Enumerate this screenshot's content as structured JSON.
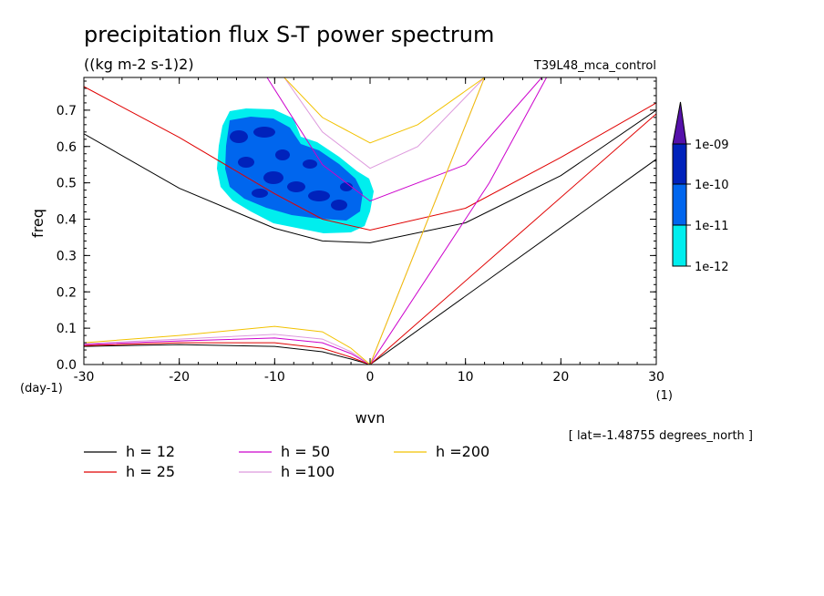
{
  "title": "precipitation flux S-T power spectrum",
  "units": "((kg m-2 s-1)2)",
  "experiment": "T39L48_mca_control",
  "lat_note": "[ lat=-1.48755 degrees_north ]",
  "colors": {
    "h12": "#000000",
    "h25": "#e00000",
    "h50": "#cc00cc",
    "h100": "#dd99dd",
    "h200": "#f2c200",
    "level1": "#00eeee",
    "level2": "#0066ee",
    "level3": "#0022bb",
    "level4": "#5511aa"
  },
  "chart_data": {
    "type": "line",
    "title": "precipitation flux S-T power spectrum",
    "subtitle": "((kg m-2 s-1)2)",
    "xlabel": "wvn",
    "ylabel": "freq",
    "x_unit": "(1)",
    "y_unit": "(day-1)",
    "xlim": [
      -30,
      30
    ],
    "ylim": [
      0,
      0.79
    ],
    "x_ticks": [
      -30,
      -20,
      -10,
      0,
      10,
      20,
      30
    ],
    "x_tick_labels": [
      "-30",
      "-20",
      "-10",
      "0",
      "10",
      "20",
      "30"
    ],
    "y_ticks": [
      0,
      0.1,
      0.2,
      0.3,
      0.4,
      0.5,
      0.6,
      0.7
    ],
    "y_tick_labels": [
      "0.0",
      "0.1",
      "0.2",
      "0.3",
      "0.4",
      "0.5",
      "0.6",
      "0.7"
    ],
    "grid": false,
    "legend_position": "bottom-left",
    "series": [
      {
        "name": "h = 12",
        "key": "h12",
        "kelvin": {
          "x": [
            0,
            30
          ],
          "y": [
            0,
            0.565
          ]
        },
        "ig": {
          "x": [
            -30,
            -20,
            -10,
            -5,
            0,
            10,
            20,
            30
          ],
          "y": [
            0.635,
            0.485,
            0.375,
            0.34,
            0.335,
            0.39,
            0.52,
            0.7
          ]
        },
        "er": {
          "x": [
            -30,
            -20,
            -10,
            -5,
            -2,
            0
          ],
          "y": [
            0.05,
            0.055,
            0.05,
            0.035,
            0.015,
            0
          ]
        }
      },
      {
        "name": "h = 25",
        "key": "h25",
        "kelvin": {
          "x": [
            0,
            30
          ],
          "y": [
            0,
            0.69
          ]
        },
        "ig": {
          "x": [
            -30,
            -20,
            -10,
            -5,
            0,
            10,
            20,
            30
          ],
          "y": [
            0.765,
            0.625,
            0.47,
            0.4,
            0.37,
            0.43,
            0.57,
            0.72
          ]
        },
        "er": {
          "x": [
            -30,
            -20,
            -10,
            -5,
            -2,
            0
          ],
          "y": [
            0.052,
            0.06,
            0.06,
            0.045,
            0.02,
            0
          ]
        }
      },
      {
        "name": "h = 50",
        "key": "h50",
        "kelvin": {
          "x": [
            0,
            12.5,
            18.5
          ],
          "y": [
            0,
            0.5,
            0.79
          ]
        },
        "ig": {
          "x": [
            -10.8,
            -5,
            0,
            10,
            18
          ],
          "y": [
            0.79,
            0.55,
            0.45,
            0.55,
            0.79
          ]
        },
        "er": {
          "x": [
            -30,
            -20,
            -10,
            -5,
            -2,
            0
          ],
          "y": [
            0.055,
            0.065,
            0.073,
            0.06,
            0.03,
            0
          ]
        }
      },
      {
        "name": "h =100",
        "key": "h100",
        "kelvin": {
          "x": [
            0,
            12
          ],
          "y": [
            0,
            0.79
          ]
        },
        "ig": {
          "x": [
            -9,
            -5,
            0,
            5,
            12
          ],
          "y": [
            0.79,
            0.64,
            0.54,
            0.6,
            0.79
          ]
        },
        "er": {
          "x": [
            -30,
            -20,
            -10,
            -5,
            -2,
            0
          ],
          "y": [
            0.057,
            0.07,
            0.083,
            0.07,
            0.035,
            0
          ]
        }
      },
      {
        "name": "h =200",
        "key": "h200",
        "kelvin": {
          "x": [
            0,
            12
          ],
          "y": [
            0,
            0.79
          ]
        },
        "ig": {
          "x": [
            -9,
            -5,
            0,
            5,
            12
          ],
          "y": [
            0.79,
            0.68,
            0.61,
            0.66,
            0.79
          ]
        },
        "er": {
          "x": [
            -30,
            -20,
            -10,
            -5,
            -2,
            0
          ],
          "y": [
            0.06,
            0.08,
            0.105,
            0.09,
            0.045,
            0
          ]
        }
      }
    ],
    "colorbar": {
      "type": "heatmap",
      "levels": [
        "1e-12",
        "1e-11",
        "1e-10",
        "1e-09"
      ],
      "shaded_region": {
        "wvn": [
          -16,
          0
        ],
        "freq": [
          0.36,
          0.7
        ]
      }
    }
  }
}
